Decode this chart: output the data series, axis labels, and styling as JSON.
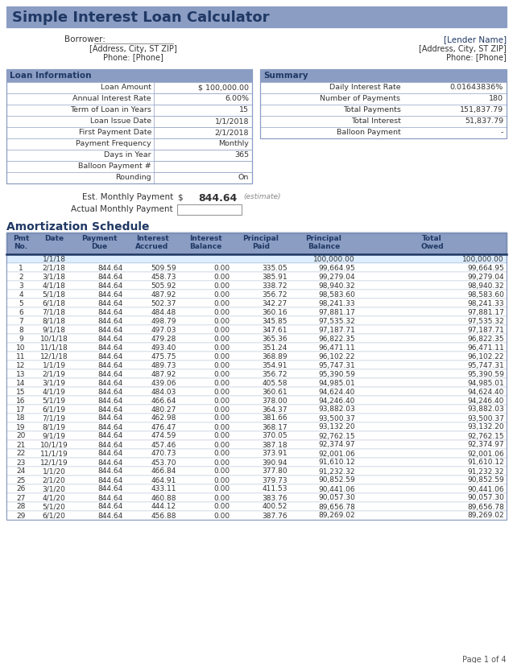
{
  "title": "Simple Interest Loan Calculator",
  "header_bg": "#8B9DC3",
  "title_color": "#1F3864",
  "border_color": "#8B9DC3",
  "dark_border": "#1F3864",
  "text_color": "#333333",
  "borrower_label": "Borrower:",
  "address_left": "[Address, City, ST ZIP]",
  "phone_left": "Phone: [Phone]",
  "lender_name": "[Lender Name]",
  "address_right": "[Address, City, ST ZIP]",
  "phone_right": "Phone: [Phone]",
  "loan_info_title": "Loan Information",
  "loan_info_rows": [
    [
      "Loan Amount",
      "$ 100,000.00"
    ],
    [
      "Annual Interest Rate",
      "6.00%"
    ],
    [
      "Term of Loan in Years",
      "15"
    ],
    [
      "Loan Issue Date",
      "1/1/2018"
    ],
    [
      "First Payment Date",
      "2/1/2018"
    ],
    [
      "Payment Frequency",
      "Monthly"
    ],
    [
      "Days in Year",
      "365"
    ],
    [
      "Balloon Payment #",
      ""
    ],
    [
      "Rounding",
      "On"
    ]
  ],
  "summary_title": "Summary",
  "summary_rows": [
    [
      "Daily Interest Rate",
      "0.01643836%"
    ],
    [
      "Number of Payments",
      "180"
    ],
    [
      "Total Payments",
      "151,837.79"
    ],
    [
      "Total Interest",
      "51,837.79"
    ],
    [
      "Balloon Payment",
      "-"
    ]
  ],
  "est_payment_label": "Est. Monthly Payment",
  "est_payment_dollar": "$",
  "est_payment_value": "844.64",
  "est_payment_note": "(estimate)",
  "actual_payment_label": "Actual Monthly Payment",
  "amort_title": "Amortization Schedule",
  "amort_headers": [
    "Pmt\nNo.",
    "Date",
    "Payment\nDue",
    "Interest\nAccrued",
    "Interest\nBalance",
    "Principal\nPaid",
    "Principal\nBalance",
    "Total\nOwed"
  ],
  "amort_init_row": [
    "",
    "1/1/18",
    "",
    "",
    "",
    "",
    "100,000.00",
    "100,000.00"
  ],
  "amort_rows": [
    [
      "1",
      "2/1/18",
      "844.64",
      "509.59",
      "0.00",
      "335.05",
      "99,664.95",
      "99,664.95"
    ],
    [
      "2",
      "3/1/18",
      "844.64",
      "458.73",
      "0.00",
      "385.91",
      "99,279.04",
      "99,279.04"
    ],
    [
      "3",
      "4/1/18",
      "844.64",
      "505.92",
      "0.00",
      "338.72",
      "98,940.32",
      "98,940.32"
    ],
    [
      "4",
      "5/1/18",
      "844.64",
      "487.92",
      "0.00",
      "356.72",
      "98,583.60",
      "98,583.60"
    ],
    [
      "5",
      "6/1/18",
      "844.64",
      "502.37",
      "0.00",
      "342.27",
      "98,241.33",
      "98,241.33"
    ],
    [
      "6",
      "7/1/18",
      "844.64",
      "484.48",
      "0.00",
      "360.16",
      "97,881.17",
      "97,881.17"
    ],
    [
      "7",
      "8/1/18",
      "844.64",
      "498.79",
      "0.00",
      "345.85",
      "97,535.32",
      "97,535.32"
    ],
    [
      "8",
      "9/1/18",
      "844.64",
      "497.03",
      "0.00",
      "347.61",
      "97,187.71",
      "97,187.71"
    ],
    [
      "9",
      "10/1/18",
      "844.64",
      "479.28",
      "0.00",
      "365.36",
      "96,822.35",
      "96,822.35"
    ],
    [
      "10",
      "11/1/18",
      "844.64",
      "493.40",
      "0.00",
      "351.24",
      "96,471.11",
      "96,471.11"
    ],
    [
      "11",
      "12/1/18",
      "844.64",
      "475.75",
      "0.00",
      "368.89",
      "96,102.22",
      "96,102.22"
    ],
    [
      "12",
      "1/1/19",
      "844.64",
      "489.73",
      "0.00",
      "354.91",
      "95,747.31",
      "95,747.31"
    ],
    [
      "13",
      "2/1/19",
      "844.64",
      "487.92",
      "0.00",
      "356.72",
      "95,390.59",
      "95,390.59"
    ],
    [
      "14",
      "3/1/19",
      "844.64",
      "439.06",
      "0.00",
      "405.58",
      "94,985.01",
      "94,985.01"
    ],
    [
      "15",
      "4/1/19",
      "844.64",
      "484.03",
      "0.00",
      "360.61",
      "94,624.40",
      "94,624.40"
    ],
    [
      "16",
      "5/1/19",
      "844.64",
      "466.64",
      "0.00",
      "378.00",
      "94,246.40",
      "94,246.40"
    ],
    [
      "17",
      "6/1/19",
      "844.64",
      "480.27",
      "0.00",
      "364.37",
      "93,882.03",
      "93,882.03"
    ],
    [
      "18",
      "7/1/19",
      "844.64",
      "462.98",
      "0.00",
      "381.66",
      "93,500.37",
      "93,500.37"
    ],
    [
      "19",
      "8/1/19",
      "844.64",
      "476.47",
      "0.00",
      "368.17",
      "93,132.20",
      "93,132.20"
    ],
    [
      "20",
      "9/1/19",
      "844.64",
      "474.59",
      "0.00",
      "370.05",
      "92,762.15",
      "92,762.15"
    ],
    [
      "21",
      "10/1/19",
      "844.64",
      "457.46",
      "0.00",
      "387.18",
      "92,374.97",
      "92,374.97"
    ],
    [
      "22",
      "11/1/19",
      "844.64",
      "470.73",
      "0.00",
      "373.91",
      "92,001.06",
      "92,001.06"
    ],
    [
      "23",
      "12/1/19",
      "844.64",
      "453.70",
      "0.00",
      "390.94",
      "91,610.12",
      "91,610.12"
    ],
    [
      "24",
      "1/1/20",
      "844.64",
      "466.84",
      "0.00",
      "377.80",
      "91,232.32",
      "91,232.32"
    ],
    [
      "25",
      "2/1/20",
      "844.64",
      "464.91",
      "0.00",
      "379.73",
      "90,852.59",
      "90,852.59"
    ],
    [
      "26",
      "3/1/20",
      "844.64",
      "433.11",
      "0.00",
      "411.53",
      "90,441.06",
      "90,441.06"
    ],
    [
      "27",
      "4/1/20",
      "844.64",
      "460.88",
      "0.00",
      "383.76",
      "90,057.30",
      "90,057.30"
    ],
    [
      "28",
      "5/1/20",
      "844.64",
      "444.12",
      "0.00",
      "400.52",
      "89,656.78",
      "89,656.78"
    ],
    [
      "29",
      "6/1/20",
      "844.64",
      "456.88",
      "0.00",
      "387.76",
      "89,269.02",
      "89,269.02"
    ]
  ],
  "page_label": "Page 1 of 4",
  "bg_color": "#FFFFFF"
}
